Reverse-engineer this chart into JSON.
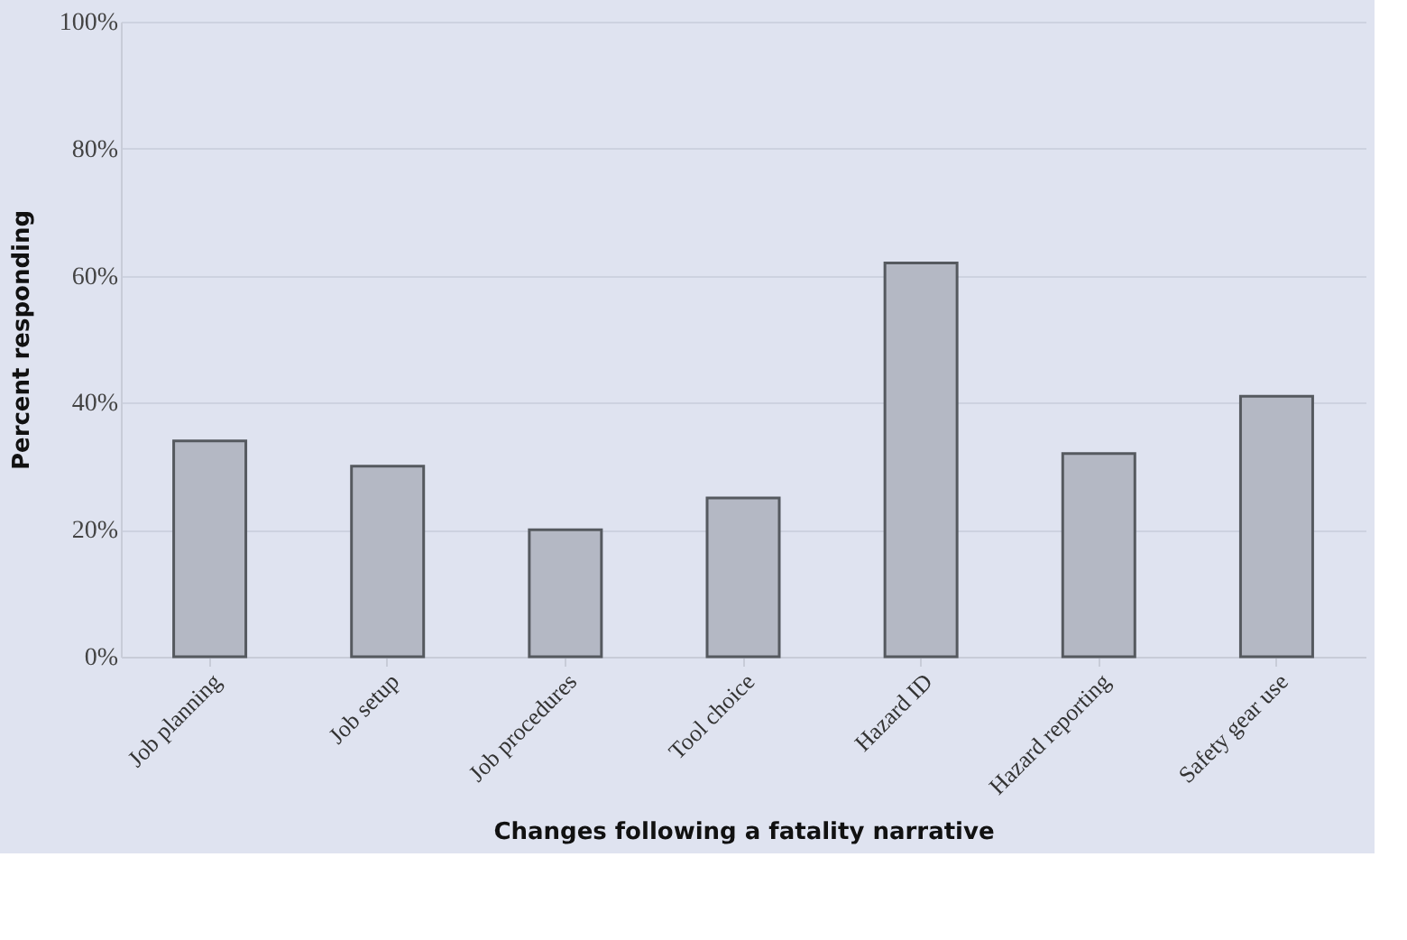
{
  "chart_data": {
    "type": "bar",
    "xlabel": "Changes following a fatality narrative",
    "ylabel": "Percent responding",
    "categories": [
      "Job planning",
      "Job setup",
      "Job procedures",
      "Tool choice",
      "Hazard ID",
      "Hazard reporting",
      "Safety gear use"
    ],
    "values": [
      34,
      30,
      20,
      25,
      62,
      32,
      41
    ],
    "color": "#b4b8c4",
    "ylim": [
      0,
      100
    ],
    "yticks": [
      {
        "value": 0,
        "label": "0%"
      },
      {
        "value": 20,
        "label": "20%"
      },
      {
        "value": 40,
        "label": "40%"
      },
      {
        "value": 60,
        "label": "60%"
      },
      {
        "value": 80,
        "label": "80%"
      },
      {
        "value": 100,
        "label": "100%"
      }
    ],
    "grid": "y"
  }
}
